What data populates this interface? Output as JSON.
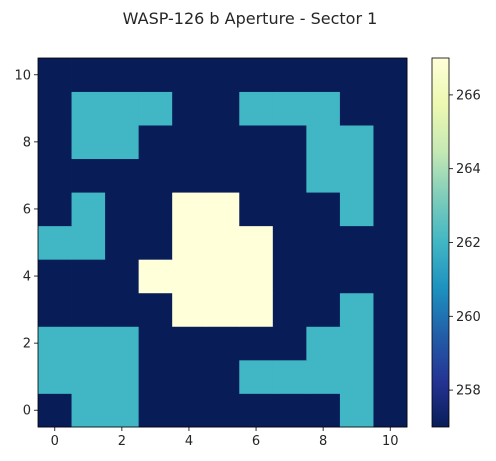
{
  "chart_data": {
    "type": "heatmap",
    "title": "WASP-126 b Aperture - Sector 1",
    "xlabel": "",
    "ylabel": "",
    "x": [
      0,
      1,
      2,
      3,
      4,
      5,
      6,
      7,
      8,
      9,
      10
    ],
    "y": [
      0,
      1,
      2,
      3,
      4,
      5,
      6,
      7,
      8,
      9,
      10
    ],
    "origin": "lower",
    "xlim": [
      -0.5,
      10.5
    ],
    "ylim": [
      -0.5,
      10.5
    ],
    "xticks": [
      0,
      2,
      4,
      6,
      8,
      10
    ],
    "yticks": [
      0,
      2,
      4,
      6,
      8,
      10
    ],
    "colormap": "YlGnBu",
    "vmin": 257,
    "vmax": 267,
    "colorbar_ticks": [
      258,
      260,
      262,
      264,
      266
    ],
    "grid": false,
    "values": [
      [
        257,
        262,
        262,
        257,
        257,
        257,
        257,
        257,
        257,
        262,
        257
      ],
      [
        262,
        262,
        262,
        257,
        257,
        257,
        262,
        262,
        262,
        262,
        257
      ],
      [
        262,
        262,
        262,
        257,
        257,
        257,
        257,
        257,
        262,
        262,
        257
      ],
      [
        257,
        257,
        257,
        257,
        267,
        267,
        267,
        257,
        257,
        262,
        257
      ],
      [
        257,
        257,
        257,
        267,
        267,
        267,
        267,
        257,
        257,
        257,
        257
      ],
      [
        262,
        262,
        257,
        257,
        267,
        267,
        267,
        257,
        257,
        257,
        257
      ],
      [
        257,
        262,
        257,
        257,
        267,
        267,
        257,
        257,
        257,
        262,
        257
      ],
      [
        257,
        257,
        257,
        257,
        257,
        257,
        257,
        257,
        262,
        262,
        257
      ],
      [
        257,
        262,
        262,
        257,
        257,
        257,
        257,
        257,
        262,
        262,
        257
      ],
      [
        257,
        262,
        262,
        262,
        257,
        257,
        262,
        262,
        262,
        257,
        257
      ],
      [
        257,
        257,
        257,
        257,
        257,
        257,
        257,
        257,
        257,
        257,
        257
      ]
    ]
  }
}
